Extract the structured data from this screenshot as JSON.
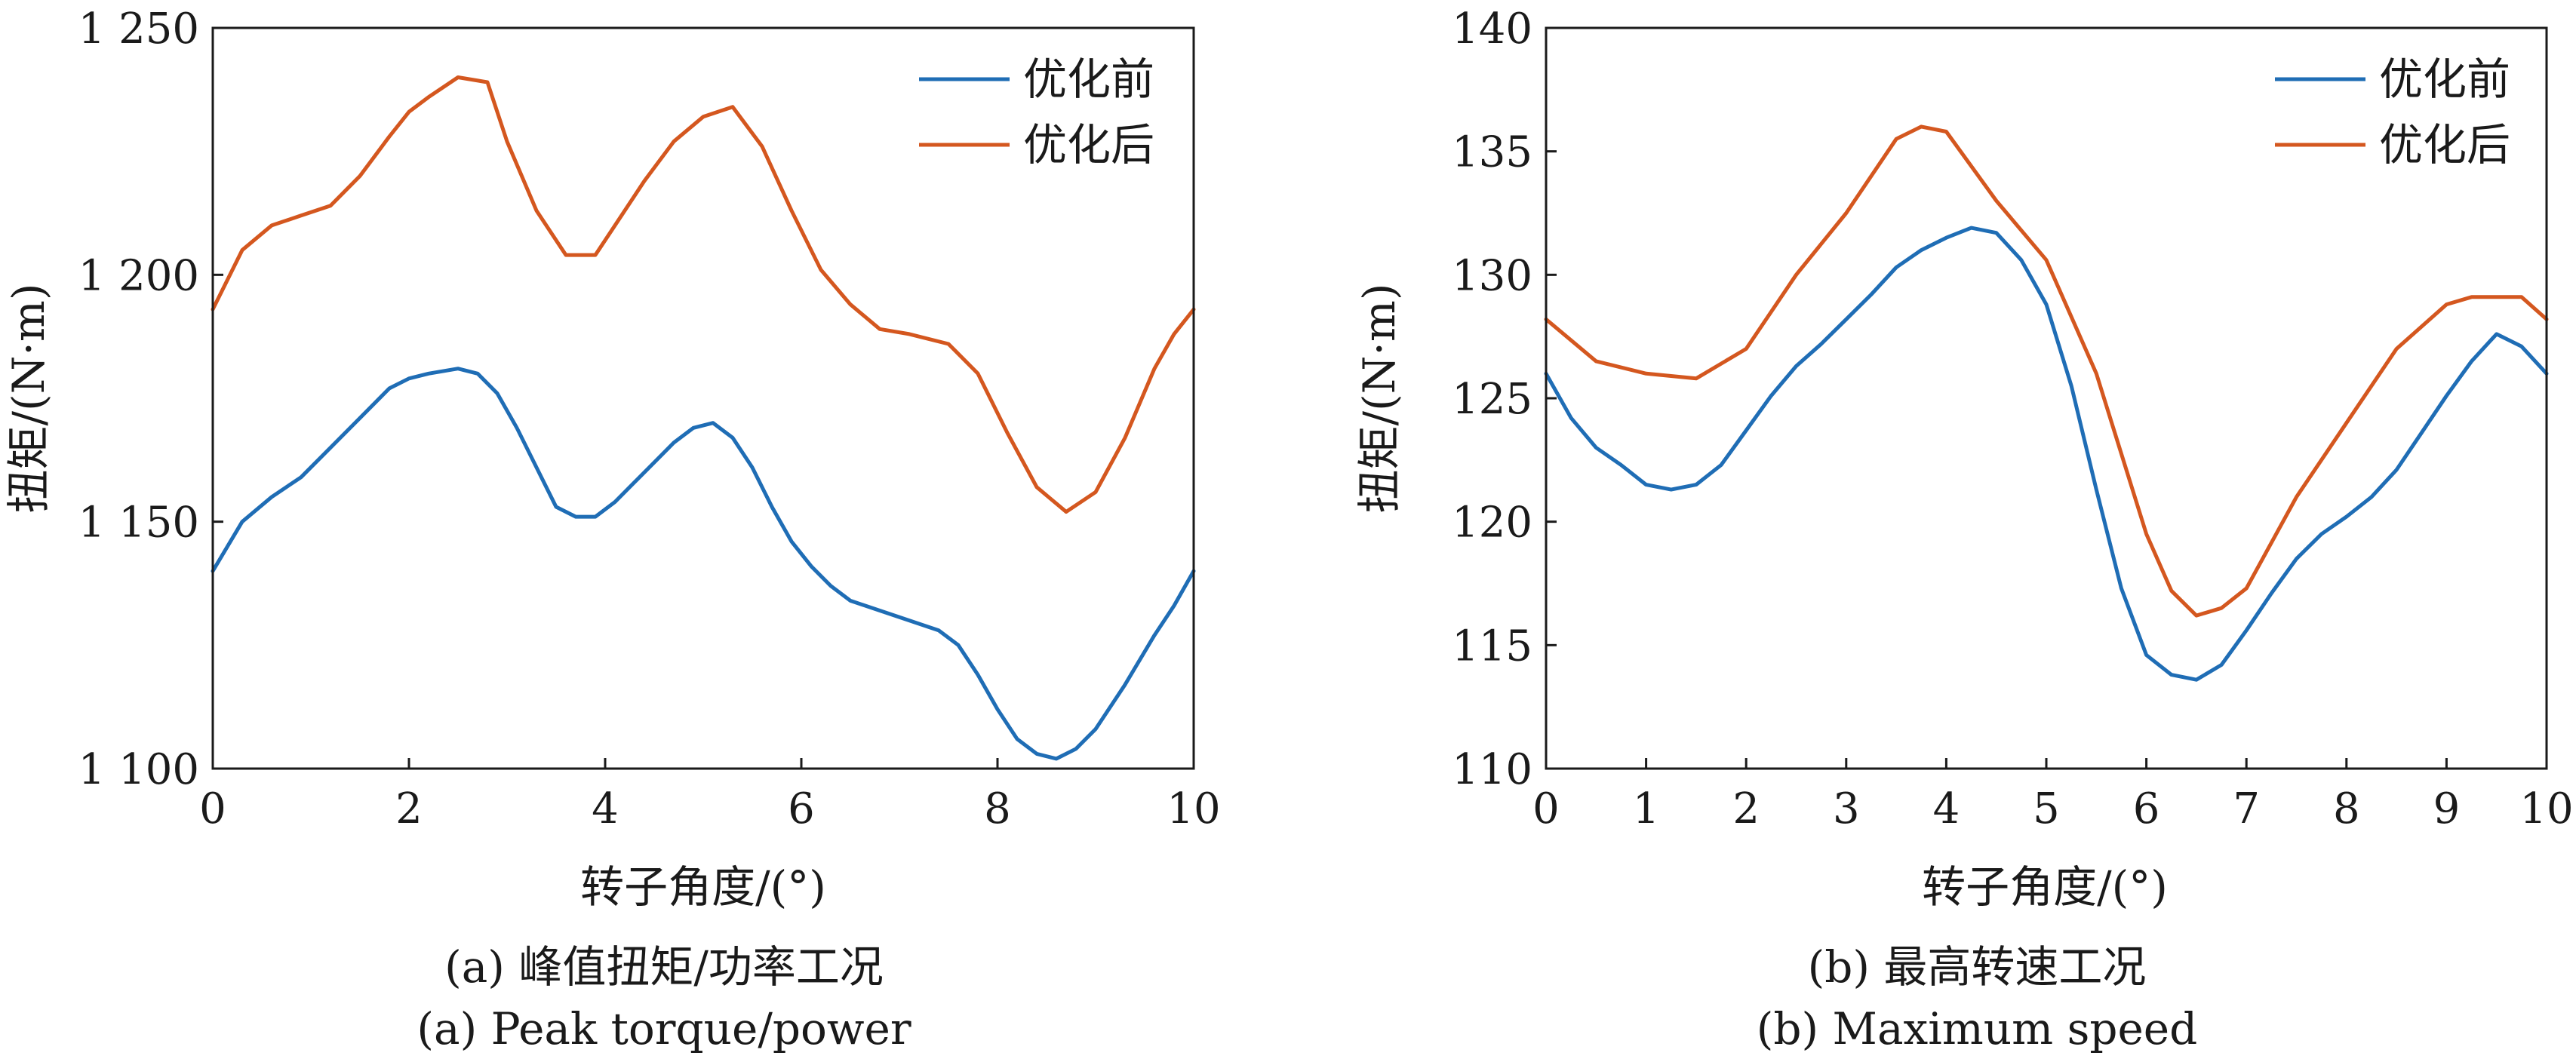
{
  "colors": {
    "before": "#1f6db5",
    "after": "#d4571f",
    "axis": "#1a1a1a"
  },
  "chart_data": [
    {
      "type": "line",
      "xlabel": "转子角度/(°)",
      "ylabel": "扭矩/(N·m)",
      "caption_cn": "(a) 峰值扭矩/功率工况",
      "caption_en": "(a) Peak torque/power",
      "xlim": [
        0,
        10
      ],
      "ylim": [
        1100,
        1250
      ],
      "xticks": [
        0,
        2,
        4,
        6,
        8,
        10
      ],
      "yticks": [
        1100,
        1150,
        1200,
        1250
      ],
      "ytick_labels": [
        "1 100",
        "1 150",
        "1 200",
        "1 250"
      ],
      "legend_position": "top-right",
      "grid": false,
      "series": [
        {
          "name": "优化前",
          "color": "#1f6db5",
          "x": [
            0,
            0.3,
            0.6,
            0.9,
            1.2,
            1.5,
            1.8,
            2.0,
            2.2,
            2.5,
            2.7,
            2.9,
            3.1,
            3.3,
            3.5,
            3.7,
            3.9,
            4.1,
            4.3,
            4.5,
            4.7,
            4.9,
            5.1,
            5.3,
            5.5,
            5.7,
            5.9,
            6.1,
            6.3,
            6.5,
            6.8,
            7.1,
            7.4,
            7.6,
            7.8,
            8.0,
            8.2,
            8.4,
            8.6,
            8.8,
            9.0,
            9.3,
            9.6,
            9.8,
            10.0
          ],
          "values": [
            1140,
            1150,
            1155,
            1159,
            1165,
            1171,
            1177,
            1179,
            1180,
            1181,
            1180,
            1176,
            1169,
            1161,
            1153,
            1151,
            1151,
            1154,
            1158,
            1162,
            1166,
            1169,
            1170,
            1167,
            1161,
            1153,
            1146,
            1141,
            1137,
            1134,
            1132,
            1130,
            1128,
            1125,
            1119,
            1112,
            1106,
            1103,
            1102,
            1104,
            1108,
            1117,
            1127,
            1133,
            1140
          ]
        },
        {
          "name": "优化后",
          "color": "#d4571f",
          "x": [
            0,
            0.3,
            0.6,
            0.9,
            1.2,
            1.5,
            1.8,
            2.0,
            2.2,
            2.5,
            2.8,
            3.0,
            3.3,
            3.6,
            3.9,
            4.1,
            4.4,
            4.7,
            5.0,
            5.3,
            5.6,
            5.9,
            6.2,
            6.5,
            6.8,
            7.1,
            7.5,
            7.8,
            8.1,
            8.4,
            8.7,
            9.0,
            9.3,
            9.6,
            9.8,
            10.0
          ],
          "values": [
            1193,
            1205,
            1210,
            1212,
            1214,
            1220,
            1228,
            1233,
            1236,
            1240,
            1239,
            1227,
            1213,
            1204,
            1204,
            1210,
            1219,
            1227,
            1232,
            1234,
            1226,
            1213,
            1201,
            1194,
            1189,
            1188,
            1186,
            1180,
            1168,
            1157,
            1152,
            1156,
            1167,
            1181,
            1188,
            1193
          ]
        }
      ]
    },
    {
      "type": "line",
      "xlabel": "转子角度/(°)",
      "ylabel": "扭矩/(N·m)",
      "caption_cn": "(b) 最高转速工况",
      "caption_en": "(b) Maximum speed",
      "xlim": [
        0,
        10
      ],
      "ylim": [
        110,
        140
      ],
      "xticks": [
        0,
        1,
        2,
        3,
        4,
        5,
        6,
        7,
        8,
        9,
        10
      ],
      "yticks": [
        110,
        115,
        120,
        125,
        130,
        135,
        140
      ],
      "ytick_labels": [
        "110",
        "115",
        "120",
        "125",
        "130",
        "135",
        "140"
      ],
      "legend_position": "top-right",
      "grid": false,
      "series": [
        {
          "name": "优化前",
          "color": "#1f6db5",
          "x": [
            0,
            0.25,
            0.5,
            0.75,
            1.0,
            1.25,
            1.5,
            1.75,
            2.0,
            2.25,
            2.5,
            2.75,
            3.0,
            3.25,
            3.5,
            3.75,
            4.0,
            4.25,
            4.5,
            4.75,
            5.0,
            5.25,
            5.5,
            5.75,
            6.0,
            6.25,
            6.5,
            6.75,
            7.0,
            7.25,
            7.5,
            7.75,
            8.0,
            8.25,
            8.5,
            8.75,
            9.0,
            9.25,
            9.5,
            9.75,
            10.0
          ],
          "values": [
            126.0,
            124.2,
            123.0,
            122.3,
            121.5,
            121.3,
            121.5,
            122.3,
            123.7,
            125.1,
            126.3,
            127.2,
            128.2,
            129.2,
            130.3,
            131.0,
            131.5,
            131.9,
            131.7,
            130.6,
            128.8,
            125.5,
            121.3,
            117.3,
            114.6,
            113.8,
            113.6,
            114.2,
            115.6,
            117.1,
            118.5,
            119.5,
            120.2,
            121.0,
            122.1,
            123.6,
            125.1,
            126.5,
            127.6,
            127.1,
            126.0
          ]
        },
        {
          "name": "优化后",
          "color": "#d4571f",
          "x": [
            0,
            0.5,
            1.0,
            1.5,
            2.0,
            2.5,
            3.0,
            3.5,
            3.75,
            4.0,
            4.5,
            5.0,
            5.5,
            6.0,
            6.25,
            6.5,
            6.75,
            7.0,
            7.5,
            8.0,
            8.5,
            9.0,
            9.25,
            9.5,
            9.75,
            10.0
          ],
          "values": [
            128.2,
            126.5,
            126.0,
            125.8,
            127.0,
            130.0,
            132.5,
            135.5,
            136.0,
            135.8,
            133.0,
            130.6,
            126.0,
            119.5,
            117.2,
            116.2,
            116.5,
            117.3,
            121.0,
            124.0,
            127.0,
            128.8,
            129.1,
            129.1,
            129.1,
            128.2
          ]
        }
      ]
    }
  ]
}
